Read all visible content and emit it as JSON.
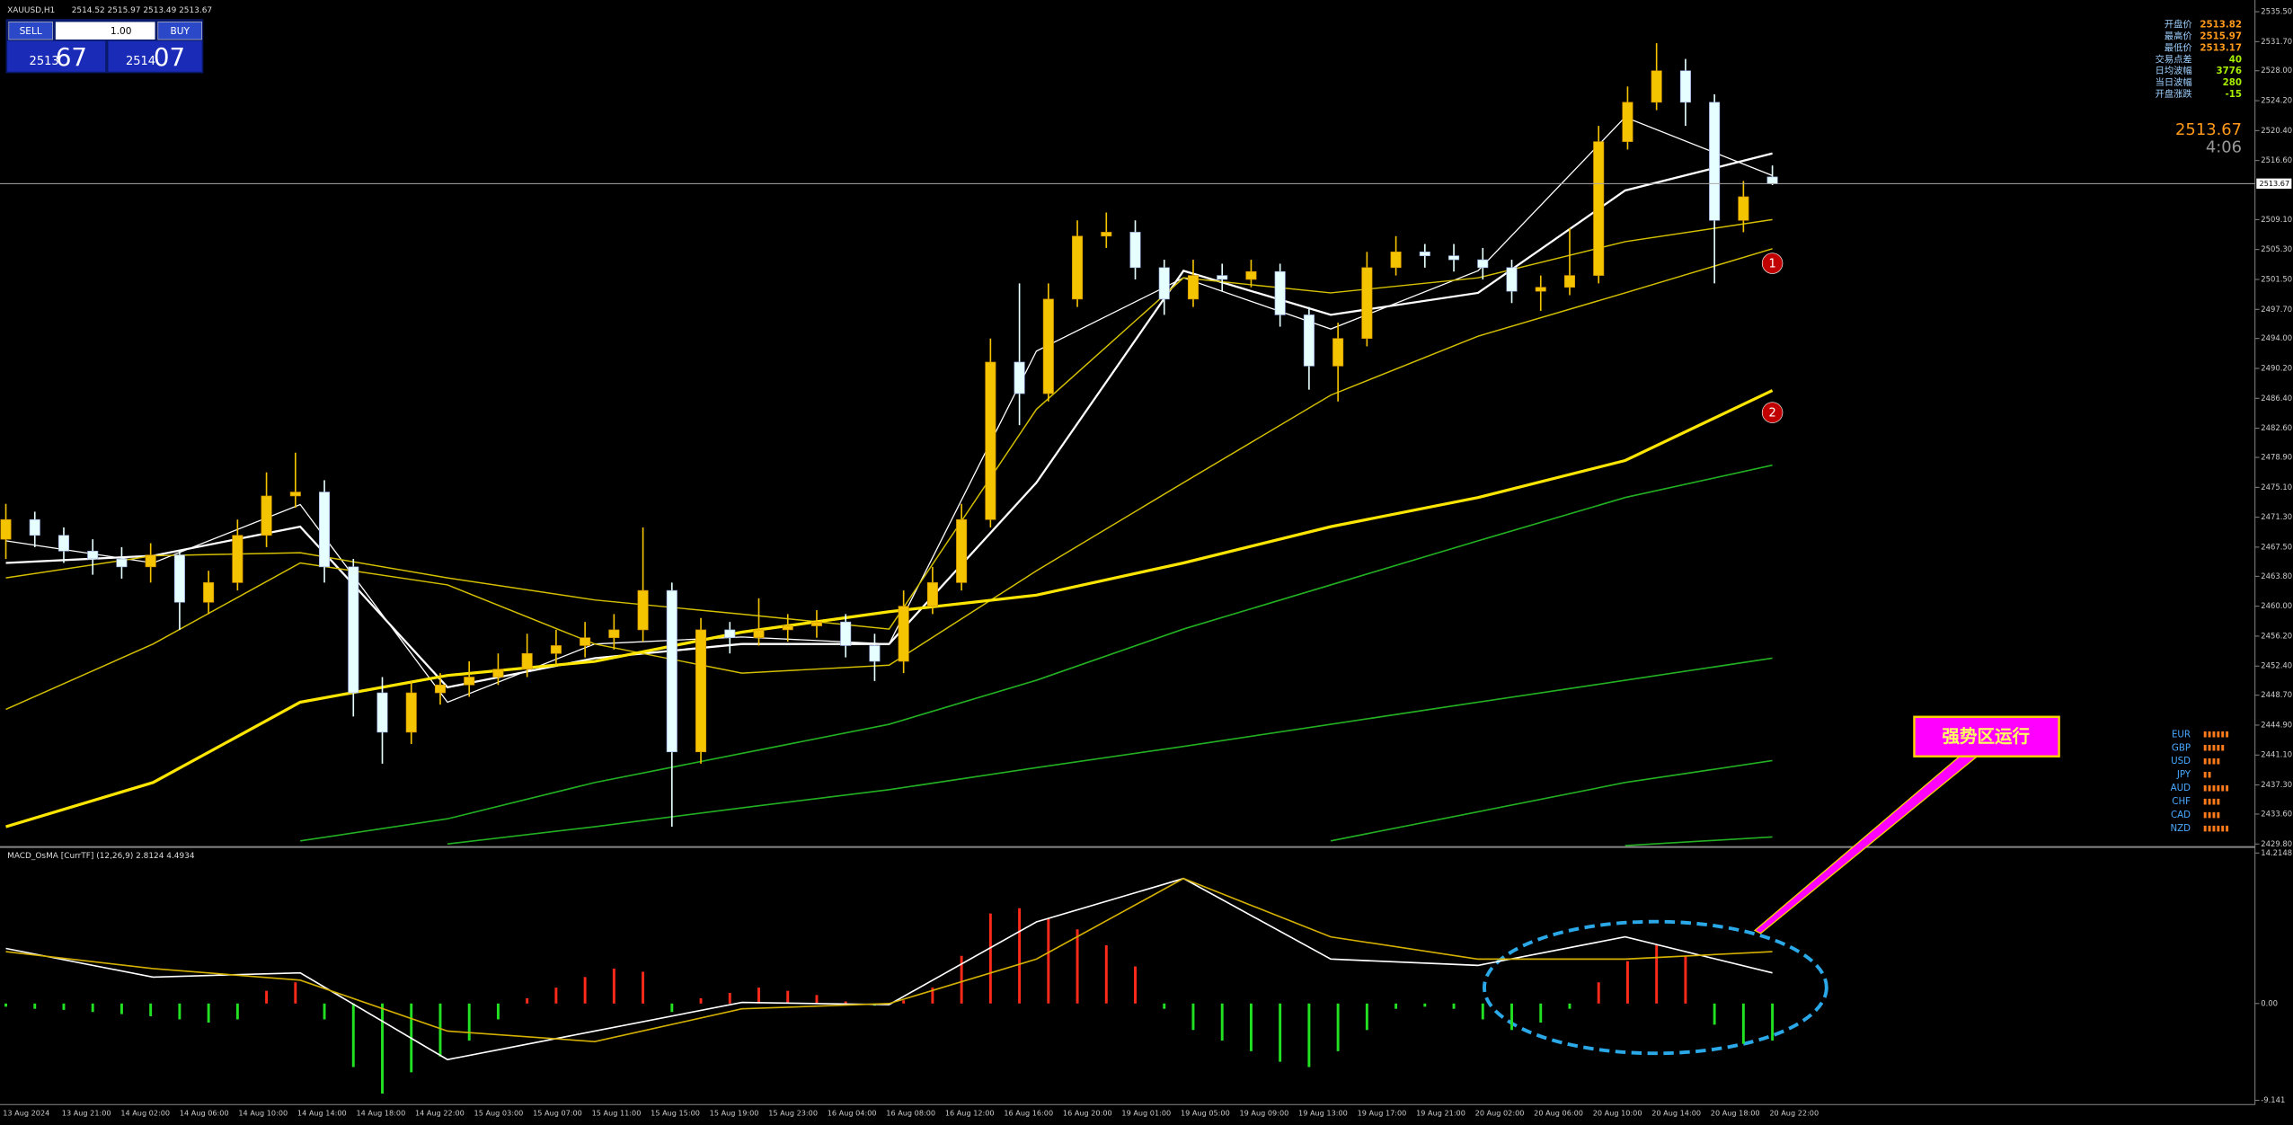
{
  "chart_data": [
    {
      "type": "candlestick",
      "title": "XAUUSD,H1",
      "subtitle": "2514.52 2515.97 2513.49 2513.67",
      "up_color": "#f5c400",
      "down_color": "#e6ffff",
      "last": 2513.67,
      "ylim": [
        2429.6,
        2536.43
      ],
      "yticks": [
        {
          "value": 2535.5,
          "label": "2535.50"
        },
        {
          "value": 2531.7,
          "label": "2531.70"
        },
        {
          "value": 2528,
          "label": "2528.00"
        },
        {
          "value": 2524.2,
          "label": "2524.20"
        },
        {
          "value": 2520.4,
          "label": "2520.40"
        },
        {
          "value": 2516.6,
          "label": "2516.60"
        },
        {
          "value": 2509.1,
          "label": "2509.10"
        },
        {
          "value": 2505.3,
          "label": "2505.30"
        },
        {
          "value": 2501.5,
          "label": "2501.50"
        },
        {
          "value": 2497.7,
          "label": "2497.70"
        },
        {
          "value": 2494,
          "label": "2494.00"
        },
        {
          "value": 2490.2,
          "label": "2490.20"
        },
        {
          "value": 2486.4,
          "label": "2486.40"
        },
        {
          "value": 2482.6,
          "label": "2482.60"
        },
        {
          "value": 2478.9,
          "label": "2478.90"
        },
        {
          "value": 2475.1,
          "label": "2475.10"
        },
        {
          "value": 2471.3,
          "label": "2471.30"
        },
        {
          "value": 2467.5,
          "label": "2467.50"
        },
        {
          "value": 2463.8,
          "label": "2463.80"
        },
        {
          "value": 2460,
          "label": "2460.00"
        },
        {
          "value": 2456.2,
          "label": "2456.20"
        },
        {
          "value": 2452.4,
          "label": "2452.40"
        },
        {
          "value": 2448.7,
          "label": "2448.70"
        },
        {
          "value": 2444.9,
          "label": "2444.90"
        },
        {
          "value": 2441.1,
          "label": "2441.10"
        },
        {
          "value": 2437.3,
          "label": "2437.30"
        },
        {
          "value": 2433.6,
          "label": "2433.60"
        },
        {
          "value": 2429.8,
          "label": "2429.80"
        }
      ],
      "open": [
        2468.5,
        2471,
        2469,
        2467,
        2466,
        2465,
        2466.5,
        2460.5,
        2463,
        2469,
        2474,
        2474.5,
        2465,
        2449,
        2444,
        2449,
        2450,
        2451,
        2452,
        2454,
        2455,
        2456,
        2457,
        2462,
        2441.5,
        2457,
        2456,
        2457,
        2457.5,
        2458,
        2455,
        2453,
        2460,
        2463,
        2471,
        2491,
        2487,
        2499,
        2507,
        2507.5,
        2503,
        2499,
        2502,
        2501.5,
        2502.5,
        2497,
        2490.5,
        2494,
        2503,
        2505,
        2504.5,
        2504,
        2503,
        2500,
        2500.5,
        2502,
        2519,
        2524,
        2528,
        2524,
        2509,
        2514.52
      ],
      "high": [
        2473,
        2472,
        2470,
        2468.5,
        2467.5,
        2468,
        2467,
        2464.5,
        2471,
        2477,
        2479.5,
        2476,
        2466,
        2451,
        2450.5,
        2451.5,
        2453,
        2454,
        2456.5,
        2457,
        2458,
        2459,
        2470,
        2463,
        2458.5,
        2458,
        2461,
        2459,
        2459.5,
        2459,
        2456.5,
        2462,
        2465,
        2473,
        2494,
        2501,
        2501,
        2509,
        2510,
        2509,
        2504,
        2504,
        2503.5,
        2504,
        2503.5,
        2498,
        2496,
        2505,
        2507,
        2506,
        2506,
        2505.5,
        2504,
        2502,
        2508,
        2521,
        2526,
        2531.5,
        2529.5,
        2525,
        2514,
        2515.97
      ],
      "low": [
        2466,
        2467.5,
        2465.5,
        2464,
        2463.5,
        2463,
        2457,
        2459,
        2462,
        2467.5,
        2472.5,
        2463,
        2446,
        2440,
        2442.5,
        2447.5,
        2448.5,
        2450,
        2451,
        2452.5,
        2453.5,
        2454.5,
        2455.5,
        2432,
        2440,
        2454,
        2455,
        2455.5,
        2456,
        2453.5,
        2450.5,
        2451.5,
        2459,
        2462,
        2470,
        2483,
        2486,
        2498,
        2505.5,
        2501.5,
        2497,
        2498,
        2500,
        2500.5,
        2495.5,
        2487.5,
        2486,
        2493,
        2502,
        2503,
        2502.5,
        2501.5,
        2498.5,
        2497.5,
        2499.5,
        2501,
        2518,
        2523,
        2521,
        2501,
        2507.5,
        2513.49
      ],
      "close": [
        2471,
        2469,
        2467,
        2466,
        2465,
        2466.5,
        2460.5,
        2463,
        2469,
        2474,
        2474.5,
        2465,
        2449,
        2444,
        2449,
        2450,
        2451,
        2452,
        2454,
        2455,
        2456,
        2457,
        2462,
        2441.5,
        2457,
        2456,
        2457,
        2457.5,
        2458,
        2455,
        2453,
        2460,
        2463,
        2471,
        2491,
        2487,
        2499,
        2507,
        2507.5,
        2503,
        2499,
        2502,
        2501.5,
        2502.5,
        2497,
        2490.5,
        2494,
        2503,
        2505,
        2504.5,
        2504,
        2503,
        2500,
        2500.5,
        2502,
        2519,
        2524,
        2528,
        2524,
        2509,
        2512,
        2513.67
      ],
      "lines": [
        {
          "color": "#ffffff",
          "width": 0.8,
          "values": [
            2468.3,
            2465.5,
            2472.9,
            2447.8,
            2455.2,
            2456.1,
            2455.2,
            2492.4,
            2501.7,
            2495.2,
            2502.6,
            2522.1,
            2514.7
          ]
        },
        {
          "color": "#ffffff",
          "width": 1.4,
          "values": [
            2465.5,
            2466.4,
            2470.1,
            2449.7,
            2453.4,
            2455.2,
            2455.2,
            2475.7,
            2502.6,
            2497,
            2499.8,
            2512.8,
            2517.5
          ]
        },
        {
          "color": "#d4c000",
          "width": 0.9,
          "values": [
            2463.6,
            2466.4,
            2466.8,
            2463.6,
            2460.8,
            2459,
            2457.1,
            2485,
            2501.7,
            2499.8,
            2501.7,
            2506.3,
            2509.1
          ]
        },
        {
          "color": "#d4c000",
          "width": 0.9,
          "values": [
            2446.9,
            2455.2,
            2465.5,
            2462.7,
            2455.2,
            2451.5,
            2452.5,
            2464.5,
            2475.7,
            2486.8,
            2494.3,
            2499.8,
            2505.4
          ]
        },
        {
          "color": "#ffe600",
          "width": 2,
          "values": [
            2432,
            2437.6,
            2447.8,
            2451.2,
            2453,
            2456.7,
            2459.3,
            2461.4,
            2465.5,
            2470.1,
            2473.8,
            2478.5,
            2487.4
          ]
        },
        {
          "color": "#22b022",
          "width": 1,
          "values": [
            null,
            null,
            2430.2,
            2433,
            2437.6,
            2441.3,
            2445,
            2450.6,
            2457.1,
            2462.7,
            2468.3,
            2473.8,
            2477.9
          ]
        },
        {
          "color": "#22b022",
          "width": 1,
          "values": [
            null,
            null,
            null,
            2429.8,
            2432,
            2434.4,
            2436.7,
            2439.5,
            2442.2,
            2445,
            2447.8,
            2450.6,
            2453.4
          ]
        },
        {
          "color": "#22b022",
          "width": 1,
          "values": [
            null,
            null,
            null,
            null,
            null,
            null,
            null,
            null,
            null,
            2430.2,
            2433.9,
            2437.6,
            2440.4
          ]
        },
        {
          "color": "#22b022",
          "width": 1,
          "values": [
            null,
            null,
            null,
            null,
            null,
            null,
            null,
            null,
            null,
            null,
            null,
            2429.6,
            2430.7
          ]
        }
      ]
    },
    {
      "type": "macd",
      "title": "MACD_OsMA [CurrTF] (12,26,9) 2.8124 4.4934",
      "pos_color": "#ff2a1a",
      "neg_color": "#22e022",
      "ylim": [
        -9.4,
        14.5
      ],
      "yticks": [
        14.2148,
        {
          "value": 0,
          "label": "0.00"
        },
        -9.141
      ],
      "values": [
        -0.3,
        -0.5,
        -0.6,
        -0.8,
        -1,
        -1.2,
        -1.5,
        -1.8,
        -1.5,
        1.2,
        2,
        -1.5,
        -6,
        -8.5,
        -6.5,
        -5,
        -3.5,
        -1.5,
        0.5,
        1.5,
        2.5,
        3.3,
        3,
        -0.8,
        0.5,
        1,
        1.5,
        1.2,
        0.8,
        0.2,
        -0.2,
        0.3,
        1.5,
        4.5,
        8.5,
        9,
        8,
        7,
        5.5,
        3.5,
        -0.5,
        -2.5,
        -3.5,
        -4.5,
        -5.5,
        -6,
        -4.5,
        -2.5,
        -0.5,
        -0.3,
        -0.5,
        -1.5,
        -2.5,
        -1.8,
        -0.5,
        2,
        4,
        5.5,
        4.5,
        -2,
        -3.8,
        -3.5
      ],
      "lines": [
        {
          "color": "#ffffff",
          "values": [
            5.2,
            2.5,
            2.9,
            -5.3,
            -2.6,
            0.1,
            -0.1,
            7.7,
            11.8,
            4.2,
            3.6,
            6.3,
            2.9
          ]
        },
        {
          "color": "#d4b000",
          "values": [
            4.9,
            3.3,
            2.2,
            -2.6,
            -3.6,
            -0.5,
            0,
            4.2,
            11.8,
            6.3,
            4.2,
            4.2,
            4.9
          ]
        }
      ]
    }
  ],
  "time_axis": {
    "labels": [
      "13 Aug 2024",
      "13 Aug 21:00",
      "14 Aug 02:00",
      "14 Aug 06:00",
      "14 Aug 10:00",
      "14 Aug 14:00",
      "14 Aug 18:00",
      "14 Aug 22:00",
      "15 Aug 03:00",
      "15 Aug 07:00",
      "15 Aug 11:00",
      "15 Aug 15:00",
      "15 Aug 19:00",
      "15 Aug 23:00",
      "16 Aug 04:00",
      "16 Aug 08:00",
      "16 Aug 12:00",
      "16 Aug 16:00",
      "16 Aug 20:00",
      "19 Aug 01:00",
      "19 Aug 05:00",
      "19 Aug 09:00",
      "19 Aug 13:00",
      "19 Aug 17:00",
      "19 Aug 21:00",
      "20 Aug 02:00",
      "20 Aug 06:00",
      "20 Aug 10:00",
      "20 Aug 14:00",
      "20 Aug 18:00",
      "20 Aug 22:00"
    ]
  },
  "trade_panel": {
    "sell": "SELL",
    "lot": "1.00",
    "buy": "BUY",
    "sell_big": "2513",
    "sell_small": "67",
    "buy_big": "2514",
    "buy_small": "07"
  },
  "info": [
    {
      "label": "开盘价",
      "value": 2513.82
    },
    {
      "label": "最高价",
      "value": 2515.97
    },
    {
      "label": "最低价",
      "value": 2513.17
    },
    {
      "label": "交易点差",
      "value": 40
    },
    {
      "label": "日均波幅",
      "value": 3776
    },
    {
      "label": "当日波幅",
      "value": 280
    },
    {
      "label": "开盘涨跌",
      "value": -15
    }
  ],
  "timer": "4:06",
  "markers": [
    "1",
    "2"
  ],
  "currency_strength": [
    {
      "name": "EUR",
      "value": 6
    },
    {
      "name": "GBP",
      "value": 5
    },
    {
      "name": "USD",
      "value": 4
    },
    {
      "name": "JPY",
      "value": 2
    },
    {
      "name": "AUD",
      "value": 6
    },
    {
      "name": "CHF",
      "value": 4
    },
    {
      "name": "CAD",
      "value": 4
    },
    {
      "name": "NZD",
      "value": 6
    }
  ],
  "annotation": {
    "text": "强势区运行"
  }
}
